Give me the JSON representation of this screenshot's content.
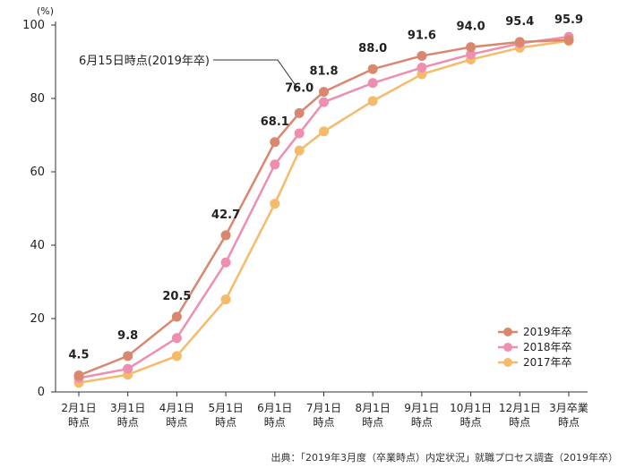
{
  "chart_data": {
    "type": "line",
    "ylabel": "(%)",
    "ylim": [
      0,
      100
    ],
    "yticks": [
      0,
      20,
      40,
      60,
      80,
      100
    ],
    "categories": [
      [
        "2月1日",
        "時点"
      ],
      [
        "3月1日",
        "時点"
      ],
      [
        "4月1日",
        "時点"
      ],
      [
        "5月1日",
        "時点"
      ],
      [
        "6月1日",
        "時点"
      ],
      [
        "6月15日",
        "時点"
      ],
      [
        "7月1日",
        "時点"
      ],
      [
        "8月1日",
        "時点"
      ],
      [
        "9月1日",
        "時点"
      ],
      [
        "10月1日",
        "時点"
      ],
      [
        "12月1日",
        "時点"
      ],
      [
        "3月卒業",
        "時点"
      ]
    ],
    "x_positions": [
      0,
      1,
      2,
      3,
      4,
      4.5,
      5,
      6,
      7,
      8,
      9,
      10
    ],
    "series": [
      {
        "name": "2019年卒",
        "color": "#d9876f",
        "values": [
          4.5,
          9.8,
          20.5,
          42.7,
          68.1,
          76.0,
          81.8,
          88.0,
          91.6,
          94.0,
          95.4,
          95.9
        ],
        "labels": [
          "4.5",
          "9.8",
          "20.5",
          "42.7",
          "68.1",
          "76.0",
          "81.8",
          "88.0",
          "91.6",
          "94.0",
          "95.4",
          "95.9"
        ]
      },
      {
        "name": "2018年卒",
        "color": "#ee8fb0",
        "values": [
          3.8,
          6.3,
          14.7,
          35.3,
          62.0,
          70.5,
          79.0,
          84.2,
          88.4,
          92.0,
          95.0,
          96.8
        ],
        "labels": []
      },
      {
        "name": "2017年卒",
        "color": "#f6bb6a",
        "values": [
          2.5,
          4.7,
          9.8,
          25.2,
          51.3,
          65.8,
          71.0,
          79.3,
          86.6,
          90.6,
          93.8,
          95.7
        ],
        "labels": []
      }
    ],
    "annotation": "6月15日時点(2019年卒)",
    "legend_position": "bottom-right",
    "grid": false
  },
  "source": "出典：「2019年3月度（卒業時点）内定状況」就職プロセス調査（2019年卒）"
}
